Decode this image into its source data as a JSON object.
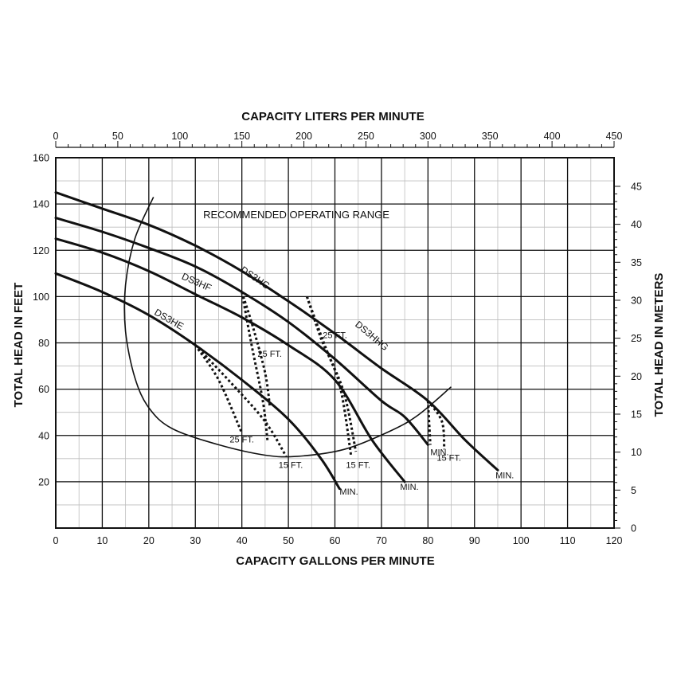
{
  "chart_data": {
    "type": "line",
    "title": "",
    "top_axis": {
      "label": "CAPACITY LITERS PER MINUTE",
      "range": [
        0,
        450
      ],
      "ticks": [
        "0",
        "50",
        "100",
        "150",
        "200",
        "250",
        "300",
        "350",
        "400",
        "450"
      ]
    },
    "x_axis": {
      "label": "CAPACITY GALLONS PER MINUTE",
      "range": [
        0,
        120
      ],
      "ticks": [
        "0",
        "10",
        "20",
        "30",
        "40",
        "50",
        "60",
        "70",
        "80",
        "90",
        "100",
        "110",
        "120"
      ]
    },
    "y_axis": {
      "label": "TOTAL HEAD IN FEET",
      "range": [
        0,
        160
      ],
      "ticks": [
        "20",
        "40",
        "60",
        "80",
        "100",
        "120",
        "140",
        "160"
      ]
    },
    "right_axis": {
      "label": "TOTAL HEAD IN METERS",
      "range": [
        0,
        48.77
      ],
      "ticks": [
        "0",
        "5",
        "10",
        "15",
        "20",
        "25",
        "30",
        "35",
        "40",
        "45"
      ]
    },
    "grid": true,
    "series": [
      {
        "name": "DS3HE",
        "points": [
          [
            0,
            110
          ],
          [
            10,
            102
          ],
          [
            20,
            92
          ],
          [
            30,
            79
          ],
          [
            40,
            64
          ],
          [
            50,
            47
          ],
          [
            57,
            30
          ],
          [
            61,
            17
          ]
        ],
        "end_label": "MIN."
      },
      {
        "name": "DS3HF",
        "points": [
          [
            0,
            125
          ],
          [
            10,
            119
          ],
          [
            20,
            111
          ],
          [
            30,
            101
          ],
          [
            40,
            91
          ],
          [
            50,
            79
          ],
          [
            60,
            64
          ],
          [
            68,
            38
          ],
          [
            75,
            20
          ]
        ],
        "end_label": "MIN."
      },
      {
        "name": "DS3HG",
        "points": [
          [
            0,
            134
          ],
          [
            10,
            128
          ],
          [
            20,
            121
          ],
          [
            30,
            113
          ],
          [
            40,
            102
          ],
          [
            50,
            89
          ],
          [
            60,
            73
          ],
          [
            70,
            55
          ],
          [
            75,
            48
          ],
          [
            80,
            36
          ]
        ],
        "end_label": "MIN."
      },
      {
        "name": "DS3HHG",
        "points": [
          [
            0,
            145
          ],
          [
            10,
            138
          ],
          [
            20,
            131
          ],
          [
            30,
            122
          ],
          [
            40,
            111
          ],
          [
            50,
            98
          ],
          [
            60,
            84
          ],
          [
            70,
            69
          ],
          [
            80,
            55
          ],
          [
            88,
            38
          ],
          [
            95,
            25
          ]
        ],
        "end_label": "MIN."
      }
    ],
    "npsh_lines": [
      {
        "label": "25 FT.",
        "points": [
          [
            30,
            79
          ],
          [
            35,
            64
          ],
          [
            40,
            41
          ]
        ]
      },
      {
        "label": "15 FT.",
        "points": [
          [
            30,
            79
          ],
          [
            38,
            62
          ],
          [
            45,
            46
          ],
          [
            49.5,
            31
          ]
        ]
      },
      {
        "label": "25 FT.",
        "points": [
          [
            40,
            102
          ],
          [
            42,
            80
          ],
          [
            44.5,
            55
          ],
          [
            45.5,
            38
          ]
        ]
      },
      {
        "label": "15 FT.",
        "points": [
          [
            40,
            102
          ],
          [
            42.5,
            86
          ],
          [
            45,
            67
          ],
          [
            46,
            53
          ]
        ]
      },
      {
        "label": "25 FT.",
        "points": [
          [
            54,
            100
          ],
          [
            57,
            82
          ],
          [
            61,
            62
          ],
          [
            63.5,
            31
          ]
        ]
      },
      {
        "label": "15 FT.",
        "points": [
          [
            54,
            100
          ],
          [
            58,
            78
          ],
          [
            62,
            58
          ],
          [
            64.5,
            33
          ]
        ]
      },
      {
        "label": "",
        "points": [
          [
            80,
            55
          ],
          [
            80.5,
            36
          ]
        ]
      },
      {
        "label": "15 FT.",
        "points": [
          [
            80,
            55
          ],
          [
            83,
            46
          ],
          [
            83.5,
            34
          ]
        ]
      }
    ],
    "operating_range": {
      "label": "RECOMMENDED OPERATING RANGE",
      "points": [
        [
          21,
          143
        ],
        [
          17,
          125
        ],
        [
          15,
          105
        ],
        [
          15,
          85
        ],
        [
          17,
          65
        ],
        [
          20,
          52
        ],
        [
          25,
          43
        ],
        [
          35,
          36
        ],
        [
          45,
          31.5
        ],
        [
          52,
          31
        ],
        [
          62,
          34
        ],
        [
          72,
          42
        ],
        [
          78,
          49
        ],
        [
          85,
          61
        ]
      ]
    },
    "annotations": [
      {
        "text": "DS3HE",
        "x": 24,
        "y": 89,
        "angle": 30
      },
      {
        "text": "DS3HF",
        "x": 30,
        "y": 105,
        "angle": 24
      },
      {
        "text": "DS3HG",
        "x": 42.5,
        "y": 107,
        "angle": 34
      },
      {
        "text": "DS3HHG",
        "x": 67.5,
        "y": 82,
        "angle": 40
      },
      {
        "text": "25 FT.",
        "x": 46,
        "y": 74,
        "angle": 0
      },
      {
        "text": "25 FT.",
        "x": 60,
        "y": 82,
        "angle": 0
      },
      {
        "text": "25 FT.",
        "x": 40,
        "y": 37,
        "angle": 0
      },
      {
        "text": "15 FT.",
        "x": 50.5,
        "y": 26,
        "angle": 0
      },
      {
        "text": "15 FT.",
        "x": 65,
        "y": 26,
        "angle": 0
      },
      {
        "text": "15 FT.",
        "x": 84.5,
        "y": 29,
        "angle": 0
      },
      {
        "text": "MIN.",
        "x": 63,
        "y": 14.5,
        "angle": 0
      },
      {
        "text": "MIN.",
        "x": 76,
        "y": 16.5,
        "angle": 0
      },
      {
        "text": "MIN.",
        "x": 82.5,
        "y": 31.5,
        "angle": 0
      },
      {
        "text": "MIN.",
        "x": 96.5,
        "y": 21.5,
        "angle": 0
      }
    ]
  },
  "colors": {
    "line": "#111111",
    "grid": "#111111",
    "minor_grid": "#bdbdbd",
    "background": "#ffffff"
  }
}
